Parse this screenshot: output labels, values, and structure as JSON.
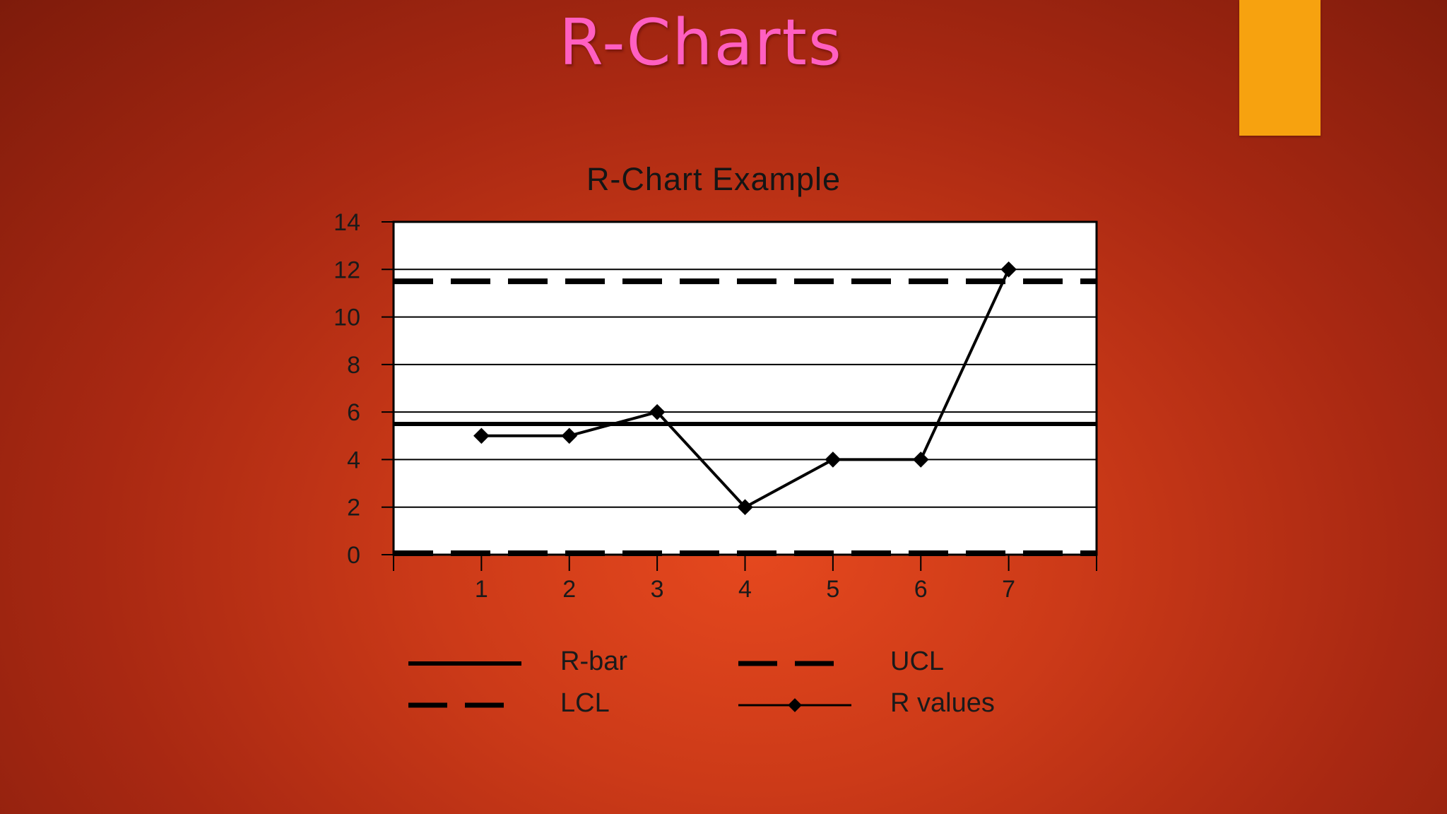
{
  "slide": {
    "title": "R-Charts",
    "accent_color": "#f7a20f",
    "title_color": "#ff5fc1"
  },
  "chart_data": {
    "type": "line",
    "title": "R-Chart Example",
    "xlabel": "",
    "ylabel": "",
    "categories": [
      "1",
      "2",
      "3",
      "4",
      "5",
      "6",
      "7"
    ],
    "x_domain": [
      0,
      8
    ],
    "ylim": [
      0,
      14
    ],
    "yticks": [
      0,
      2,
      4,
      6,
      8,
      10,
      12,
      14
    ],
    "grid": true,
    "legend_position": "bottom",
    "series": [
      {
        "name": "R values",
        "values": [
          5,
          5,
          6,
          2,
          4,
          4,
          12
        ],
        "style": "solid-marker"
      }
    ],
    "reference_lines": [
      {
        "name": "R-bar",
        "value": 5.5,
        "style": "solid"
      },
      {
        "name": "UCL",
        "value": 11.5,
        "style": "dashed"
      },
      {
        "name": "LCL",
        "value": 0,
        "style": "dashed"
      }
    ]
  }
}
